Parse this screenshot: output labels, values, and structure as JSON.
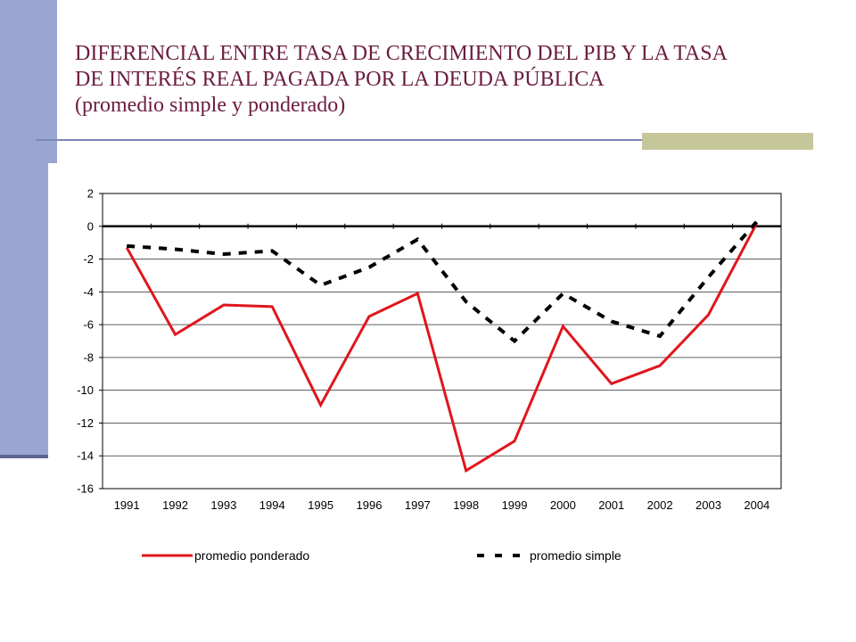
{
  "slide": {
    "title_line1": "DIFERENCIAL ENTRE TASA DE CRECIMIENTO DEL PIB Y LA TASA",
    "title_line2": "DE INTERÉS REAL PAGADA POR LA DEUDA PÚBLICA",
    "title_line3": "(promedio simple y ponderado)",
    "title_color": "#6b1d40",
    "accent_color": "#9aa6d2"
  },
  "chart_data": {
    "type": "line",
    "title": "",
    "xlabel": "",
    "ylabel": "",
    "categories": [
      "1991",
      "1992",
      "1993",
      "1994",
      "1995",
      "1996",
      "1997",
      "1998",
      "1999",
      "2000",
      "2001",
      "2002",
      "2003",
      "2004"
    ],
    "ylim": [
      -16,
      2
    ],
    "yticks": [
      2,
      0,
      -2,
      -4,
      -6,
      -8,
      -10,
      -12,
      -14,
      -16
    ],
    "grid": true,
    "legend_position": "bottom",
    "series": [
      {
        "name": "promedio ponderado",
        "color": "#e0161d",
        "style": "solid",
        "values": [
          -1.3,
          -6.6,
          -4.8,
          -4.9,
          -10.9,
          -5.5,
          -4.1,
          -14.9,
          -13.1,
          -6.1,
          -9.6,
          -8.5,
          -5.4,
          0.2
        ]
      },
      {
        "name": "promedio simple",
        "color": "#000000",
        "style": "dashed",
        "values": [
          -1.2,
          -1.4,
          -1.7,
          -1.5,
          -3.6,
          -2.5,
          -0.8,
          -4.6,
          -7.0,
          -4.1,
          -5.8,
          -6.7,
          -3.1,
          0.3
        ]
      }
    ]
  }
}
